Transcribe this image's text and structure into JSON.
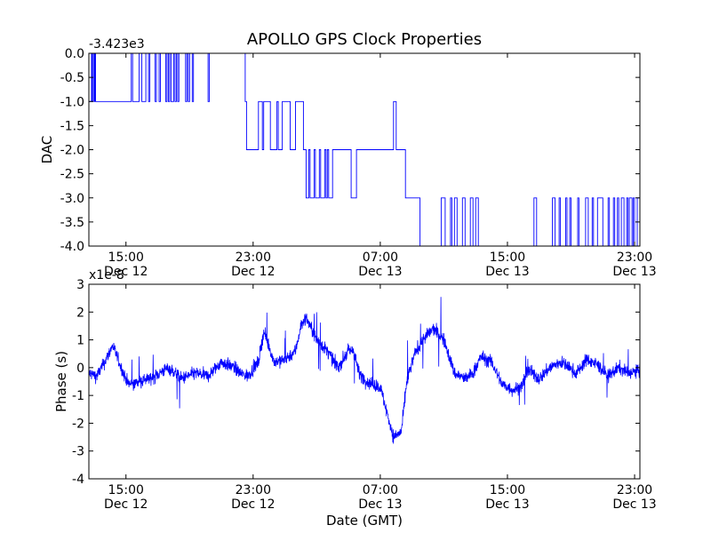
{
  "figure": {
    "title": "APOLLO GPS Clock Properties",
    "xlabel": "Date (GMT)"
  },
  "chart_data": [
    {
      "type": "line",
      "ylabel": "DAC",
      "offset_text": "-3.423e3",
      "series_color": "#0000ff",
      "ylim": [
        -4.0,
        0.0
      ],
      "yticks": [
        {
          "v": 0.0,
          "label": "0.0"
        },
        {
          "v": -0.5,
          "label": "-0.5"
        },
        {
          "v": -1.0,
          "label": "-1.0"
        },
        {
          "v": -1.5,
          "label": "-1.5"
        },
        {
          "v": -2.0,
          "label": "-2.0"
        },
        {
          "v": -2.5,
          "label": "-2.5"
        },
        {
          "v": -3.0,
          "label": "-3.0"
        },
        {
          "v": -3.5,
          "label": "-3.5"
        },
        {
          "v": -4.0,
          "label": "-4.0"
        }
      ],
      "xlim": [
        "Dec 12 12:40",
        "Dec 13 23:30"
      ],
      "xticks": [
        {
          "t": 140,
          "time": "15:00",
          "date": "Dec 12"
        },
        {
          "t": 620,
          "time": "23:00",
          "date": "Dec 12"
        },
        {
          "t": 1100,
          "time": "07:00",
          "date": "Dec 13"
        },
        {
          "t": 1580,
          "time": "15:00",
          "date": "Dec 13"
        },
        {
          "t": 2060,
          "time": "23:00",
          "date": "Dec 13"
        }
      ],
      "x_minutes_since_dec12_1240": [
        0,
        10,
        12,
        14,
        19,
        22,
        25,
        160,
        165,
        190,
        200,
        215,
        225,
        230,
        250,
        255,
        265,
        270,
        290,
        295,
        300,
        305,
        310,
        320,
        325,
        330,
        335,
        340,
        365,
        370,
        375,
        380,
        390,
        395,
        450,
        455,
        590,
        595,
        640,
        655,
        660,
        685,
        710,
        715,
        730,
        760,
        780,
        810,
        820,
        830,
        835,
        850,
        855,
        870,
        875,
        890,
        895,
        900,
        905,
        920,
        990,
        1010,
        1150,
        1160,
        1195,
        1250,
        1330,
        1345,
        1365,
        1370,
        1380,
        1390,
        1410,
        1420,
        1440,
        1450,
        1460,
        1470,
        1680,
        1690,
        1750,
        1760,
        1775,
        1780,
        1800,
        1805,
        1815,
        1820,
        1845,
        1850,
        1875,
        1885,
        1900,
        1905,
        1920,
        1940,
        1960,
        1965,
        1980,
        1985,
        1995,
        2000,
        2010,
        2020,
        2030,
        2035,
        2040,
        2050,
        2055,
        2060,
        2070,
        2080
      ],
      "y_values": [
        -1,
        0,
        -1,
        0,
        -1,
        0,
        -1,
        0,
        -1,
        0,
        -1,
        0,
        -1,
        0,
        -1,
        0,
        -1,
        0,
        -1,
        0,
        -1,
        0,
        -1,
        0,
        -1,
        0,
        -1,
        0,
        -1,
        0,
        -1,
        0,
        -1,
        0,
        -1,
        0,
        -1,
        -2,
        -1,
        -2,
        -1,
        -2,
        -1,
        -2,
        -1,
        -2,
        -1,
        -2,
        -3,
        -2,
        -3,
        -2,
        -3,
        -2,
        -3,
        -2,
        -3,
        -2,
        -3,
        -2,
        -3,
        -2,
        -1,
        -2,
        -3,
        -4,
        -3,
        -4,
        -3,
        -4,
        -3,
        -4,
        -3,
        -4,
        -3,
        -4,
        -3,
        -4,
        -3,
        -4,
        -3,
        -4,
        -3,
        -4,
        -3,
        -4,
        -3,
        -4,
        -3,
        -4,
        -3,
        -4,
        -3,
        -4,
        -3,
        -4,
        -3,
        -4,
        -3,
        -4,
        -3,
        -4,
        -3,
        -4,
        -3,
        -4,
        -3,
        -4,
        -3,
        -4,
        -3
      ]
    },
    {
      "type": "line",
      "ylabel": "Phase (s)",
      "offset_text": "x1e-8",
      "series_color": "#0000ff",
      "ylim": [
        -4,
        3
      ],
      "yticks": [
        {
          "v": 3,
          "label": "3"
        },
        {
          "v": 2,
          "label": "2"
        },
        {
          "v": 1,
          "label": "1"
        },
        {
          "v": 0,
          "label": "0"
        },
        {
          "v": -1,
          "label": "-1"
        },
        {
          "v": -2,
          "label": "-2"
        },
        {
          "v": -3,
          "label": "-3"
        },
        {
          "v": -4,
          "label": "-4"
        }
      ],
      "xlim": [
        "Dec 12 12:40",
        "Dec 13 23:30"
      ],
      "xticks": [
        {
          "t": 140,
          "time": "15:00",
          "date": "Dec 12"
        },
        {
          "t": 620,
          "time": "23:00",
          "date": "Dec 12"
        },
        {
          "t": 1100,
          "time": "07:00",
          "date": "Dec 13"
        },
        {
          "t": 1580,
          "time": "15:00",
          "date": "Dec 13"
        },
        {
          "t": 2060,
          "time": "23:00",
          "date": "Dec 13"
        }
      ],
      "trend_x_minutes_since_dec12_1240": [
        0,
        30,
        60,
        90,
        130,
        150,
        200,
        250,
        300,
        350,
        400,
        450,
        500,
        550,
        570,
        600,
        640,
        660,
        700,
        740,
        780,
        800,
        820,
        860,
        900,
        940,
        980,
        1000,
        1020,
        1050,
        1100,
        1130,
        1150,
        1180,
        1200,
        1230,
        1260,
        1300,
        1340,
        1380,
        1400,
        1420,
        1450,
        1480,
        1520,
        1560,
        1600,
        1630,
        1660,
        1700,
        1740,
        1780,
        1800,
        1840,
        1880,
        1920,
        1960,
        2000,
        2040,
        2080
      ],
      "trend_y_values": [
        -0.2,
        -0.3,
        0.2,
        0.8,
        -0.2,
        -0.6,
        -0.5,
        -0.3,
        0.0,
        -0.4,
        -0.2,
        -0.3,
        0.2,
        0.0,
        -0.2,
        -0.3,
        0.2,
        1.3,
        0.2,
        0.3,
        0.6,
        1.5,
        1.8,
        1.0,
        0.6,
        0.0,
        0.6,
        0.6,
        -0.2,
        -0.5,
        -0.7,
        -1.8,
        -2.5,
        -2.3,
        -0.5,
        0.5,
        1.0,
        1.4,
        1.0,
        -0.2,
        -0.3,
        -0.4,
        -0.2,
        0.4,
        0.2,
        -0.6,
        -0.8,
        -0.7,
        -0.1,
        -0.4,
        0.0,
        0.2,
        0.1,
        -0.2,
        0.3,
        0.1,
        -0.3,
        0.0,
        -0.2,
        -0.1
      ]
    }
  ]
}
